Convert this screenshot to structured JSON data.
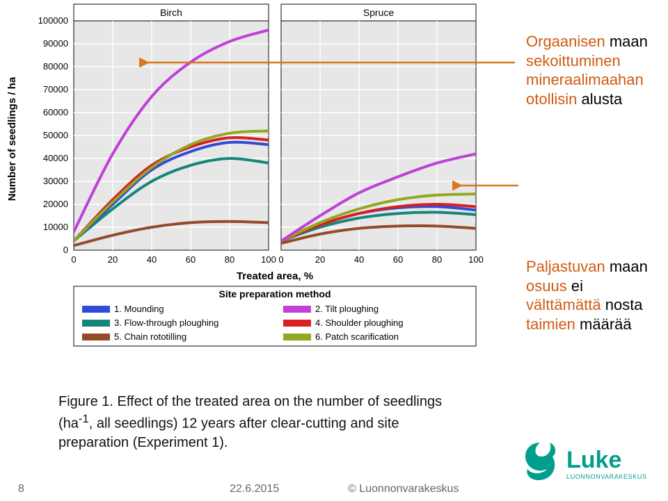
{
  "chart": {
    "panels": [
      "Birch",
      "Spruce"
    ],
    "ylabel": "Number of seedlings / ha",
    "xlabel": "Treated area, %",
    "legend_title": "Site preparation method",
    "legend_items": [
      {
        "n": "1. Mounding",
        "color": "#2f4cd8"
      },
      {
        "n": "2. Tilt ploughing",
        "color": "#c040d8"
      },
      {
        "n": "3. Flow-through ploughing",
        "color": "#16857a"
      },
      {
        "n": "4. Shoulder ploughing",
        "color": "#d82020"
      },
      {
        "n": "5. Chain rototilling",
        "color": "#964a2b"
      },
      {
        "n": "6. Patch scarification",
        "color": "#92a820"
      }
    ],
    "ylim": [
      0,
      100000
    ],
    "ytick_step": 10000,
    "xlim": [
      0,
      100
    ],
    "xtick_step": 20,
    "panel_bg": "#e7e7e7",
    "panel_border": "#333333",
    "grid_color": "#ffffff",
    "title_fontsize": 14,
    "axis_label_fontsize": 15,
    "tick_fontsize": 13,
    "line_width": 4,
    "series": {
      "birch": {
        "mounding": [
          [
            0,
            4000
          ],
          [
            20,
            20000
          ],
          [
            40,
            35000
          ],
          [
            60,
            43000
          ],
          [
            80,
            47000
          ],
          [
            100,
            46000
          ]
        ],
        "tilt": [
          [
            0,
            8000
          ],
          [
            20,
            42000
          ],
          [
            40,
            67000
          ],
          [
            60,
            82000
          ],
          [
            80,
            91000
          ],
          [
            100,
            96000
          ]
        ],
        "flow": [
          [
            0,
            4000
          ],
          [
            20,
            18000
          ],
          [
            40,
            30000
          ],
          [
            60,
            37000
          ],
          [
            80,
            40000
          ],
          [
            100,
            38000
          ]
        ],
        "shoulder": [
          [
            0,
            4000
          ],
          [
            20,
            22000
          ],
          [
            40,
            37000
          ],
          [
            60,
            45000
          ],
          [
            80,
            49000
          ],
          [
            100,
            48000
          ]
        ],
        "chain": [
          [
            0,
            2000
          ],
          [
            20,
            6500
          ],
          [
            40,
            10000
          ],
          [
            60,
            12000
          ],
          [
            80,
            12500
          ],
          [
            100,
            12000
          ]
        ],
        "patch": [
          [
            0,
            4000
          ],
          [
            20,
            21000
          ],
          [
            40,
            36000
          ],
          [
            60,
            46000
          ],
          [
            80,
            51000
          ],
          [
            100,
            52000
          ]
        ]
      },
      "spruce": {
        "mounding": [
          [
            0,
            4000
          ],
          [
            20,
            11000
          ],
          [
            40,
            16000
          ],
          [
            60,
            18500
          ],
          [
            80,
            19000
          ],
          [
            100,
            17500
          ]
        ],
        "tilt": [
          [
            0,
            4000
          ],
          [
            20,
            15000
          ],
          [
            40,
            25000
          ],
          [
            60,
            32000
          ],
          [
            80,
            38000
          ],
          [
            100,
            42000
          ]
        ],
        "flow": [
          [
            0,
            4000
          ],
          [
            20,
            10000
          ],
          [
            40,
            14000
          ],
          [
            60,
            16000
          ],
          [
            80,
            16500
          ],
          [
            100,
            15500
          ]
        ],
        "shoulder": [
          [
            0,
            4000
          ],
          [
            20,
            11000
          ],
          [
            40,
            16000
          ],
          [
            60,
            19000
          ],
          [
            80,
            20000
          ],
          [
            100,
            19000
          ]
        ],
        "chain": [
          [
            0,
            3000
          ],
          [
            20,
            7000
          ],
          [
            40,
            9500
          ],
          [
            60,
            10500
          ],
          [
            80,
            10500
          ],
          [
            100,
            9500
          ]
        ],
        "patch": [
          [
            0,
            4000
          ],
          [
            20,
            12000
          ],
          [
            40,
            18000
          ],
          [
            60,
            22000
          ],
          [
            80,
            24000
          ],
          [
            100,
            24500
          ]
        ]
      }
    }
  },
  "annotations": {
    "top": {
      "l1a": "Orgaanisen ",
      "l1b": "maan",
      "l2": "sekoittuminen",
      "l3": "mineraalimaahan",
      "l4a": "otollisin ",
      "l4b": "alusta"
    },
    "bottom": {
      "l1a": "Paljastuvan ",
      "l1b": "maan",
      "l2a": "osuus ",
      "l2b": "ei",
      "l3a": "välttämättä ",
      "l3b": "nosta",
      "l4a": "taimien ",
      "l4b": "määrää"
    }
  },
  "arrows": {
    "color": "#d8791e"
  },
  "caption": {
    "before": "Figure 1. Effect of the treated area on the number of seedlings (ha",
    "sup": "-1",
    "after": ", all seedlings) 12 years after clear-cutting and site preparation (Experiment 1)."
  },
  "footer": {
    "page": "8",
    "date": "22.6.2015",
    "copyright": "© Luonnonvarakeskus"
  },
  "logo": {
    "brand": "Luke",
    "sub": "LUONNONVARAKESKUS",
    "color": "#009f8b"
  }
}
